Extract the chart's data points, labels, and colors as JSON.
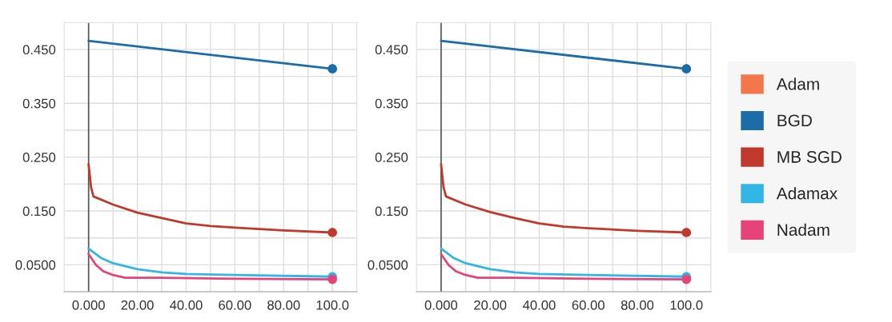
{
  "chart_data": [
    {
      "type": "line",
      "xlim": [
        -10,
        110
      ],
      "ylim": [
        0,
        0.5
      ],
      "xticks": [
        {
          "value": 0,
          "label": "0.000"
        },
        {
          "value": 10,
          "label": null
        },
        {
          "value": 20,
          "label": "20.00"
        },
        {
          "value": 30,
          "label": null
        },
        {
          "value": 40,
          "label": "40.00"
        },
        {
          "value": 50,
          "label": null
        },
        {
          "value": 60,
          "label": "60.00"
        },
        {
          "value": 70,
          "label": null
        },
        {
          "value": 80,
          "label": "80.00"
        },
        {
          "value": 90,
          "label": null
        },
        {
          "value": 100,
          "label": "100.0"
        }
      ],
      "yticks": [
        {
          "value": 0.05,
          "label": "0.0500"
        },
        {
          "value": 0.1,
          "label": null
        },
        {
          "value": 0.15,
          "label": "0.150"
        },
        {
          "value": 0.2,
          "label": null
        },
        {
          "value": 0.25,
          "label": "0.250"
        },
        {
          "value": 0.3,
          "label": null
        },
        {
          "value": 0.35,
          "label": "0.350"
        },
        {
          "value": 0.4,
          "label": null
        },
        {
          "value": 0.45,
          "label": "0.450"
        }
      ],
      "grid": true,
      "legend": false,
      "ref_lines": [
        {
          "axis": "x",
          "value": 0,
          "color": "#555555"
        }
      ],
      "series": [
        {
          "color": "#1b6ca8",
          "x": [
            0,
            100
          ],
          "values": [
            0.466,
            0.414
          ]
        },
        {
          "color": "#c0392b",
          "x": [
            0,
            1,
            2,
            10,
            20,
            30,
            40,
            50,
            60,
            80,
            100
          ],
          "values": [
            0.237,
            0.194,
            0.177,
            0.162,
            0.147,
            0.137,
            0.127,
            0.122,
            0.119,
            0.114,
            0.11
          ]
        },
        {
          "color": "#33b5e5",
          "x": [
            0,
            5,
            10,
            20,
            30,
            40,
            60,
            100
          ],
          "values": [
            0.08,
            0.063,
            0.053,
            0.042,
            0.036,
            0.033,
            0.031,
            0.028
          ]
        },
        {
          "color": "#e8427a",
          "x": [
            0,
            3,
            6,
            10,
            15,
            30,
            60,
            100
          ],
          "values": [
            0.07,
            0.05,
            0.038,
            0.031,
            0.026,
            0.026,
            0.024,
            0.023
          ]
        },
        {
          "type": "scatter",
          "marker": "circle",
          "colors": [
            "#1b6ca8",
            "#c0392b",
            "#33b5e5",
            "#e8427a"
          ],
          "x": [
            100,
            100,
            100,
            100
          ],
          "values": [
            0.414,
            0.11,
            0.028,
            0.023
          ]
        }
      ]
    },
    {
      "type": "line",
      "xlim": [
        -10,
        110
      ],
      "ylim": [
        0,
        0.5
      ],
      "xticks": [
        {
          "value": 0,
          "label": "0.000"
        },
        {
          "value": 10,
          "label": null
        },
        {
          "value": 20,
          "label": "20.00"
        },
        {
          "value": 30,
          "label": null
        },
        {
          "value": 40,
          "label": "40.00"
        },
        {
          "value": 50,
          "label": null
        },
        {
          "value": 60,
          "label": "60.00"
        },
        {
          "value": 70,
          "label": null
        },
        {
          "value": 80,
          "label": "80.00"
        },
        {
          "value": 90,
          "label": null
        },
        {
          "value": 100,
          "label": "100.0"
        }
      ],
      "yticks": [
        {
          "value": 0.05,
          "label": "0.0500"
        },
        {
          "value": 0.1,
          "label": null
        },
        {
          "value": 0.15,
          "label": "0.150"
        },
        {
          "value": 0.2,
          "label": null
        },
        {
          "value": 0.25,
          "label": "0.250"
        },
        {
          "value": 0.3,
          "label": null
        },
        {
          "value": 0.35,
          "label": "0.350"
        },
        {
          "value": 0.4,
          "label": null
        },
        {
          "value": 0.45,
          "label": "0.450"
        }
      ],
      "grid": true,
      "legend": "right",
      "ref_lines": [
        {
          "axis": "x",
          "value": 0,
          "color": "#555555"
        }
      ],
      "series": [
        {
          "name": "Adam",
          "color": "#f4774b"
        },
        {
          "name": "BGD",
          "color": "#1b6ca8",
          "x": [
            0,
            100
          ],
          "values": [
            0.466,
            0.414
          ]
        },
        {
          "name": "MB SGD",
          "color": "#c0392b",
          "x": [
            0,
            1,
            2,
            10,
            20,
            30,
            40,
            50,
            60,
            80,
            100
          ],
          "values": [
            0.237,
            0.194,
            0.177,
            0.162,
            0.148,
            0.137,
            0.127,
            0.121,
            0.118,
            0.113,
            0.11
          ]
        },
        {
          "name": "Adamax",
          "color": "#33b5e5",
          "x": [
            0,
            5,
            10,
            20,
            30,
            40,
            60,
            100
          ],
          "values": [
            0.08,
            0.063,
            0.053,
            0.042,
            0.036,
            0.033,
            0.031,
            0.028
          ]
        },
        {
          "name": "Nadam",
          "color": "#e8427a",
          "x": [
            0,
            3,
            6,
            10,
            15,
            30,
            60,
            100
          ],
          "values": [
            0.07,
            0.05,
            0.038,
            0.031,
            0.026,
            0.026,
            0.024,
            0.023
          ]
        },
        {
          "type": "scatter",
          "marker": "circle",
          "colors": [
            "#1b6ca8",
            "#c0392b",
            "#33b5e5",
            "#e8427a"
          ],
          "x": [
            100,
            100,
            100,
            100
          ],
          "values": [
            0.414,
            0.11,
            0.028,
            0.023
          ]
        }
      ]
    }
  ]
}
